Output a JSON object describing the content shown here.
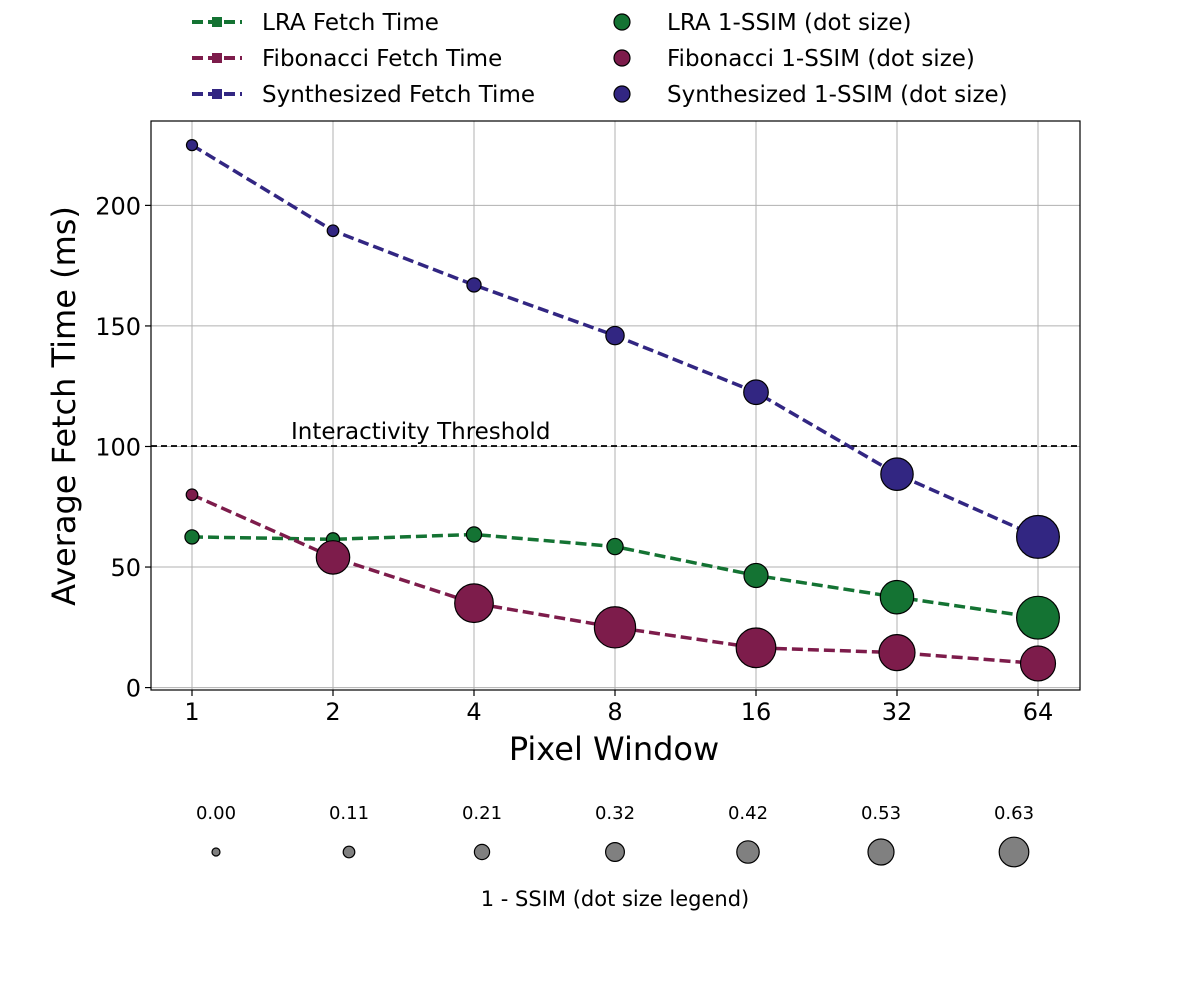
{
  "chart_data": {
    "type": "line",
    "x_categories": [
      "1",
      "2",
      "4",
      "8",
      "16",
      "32",
      "64"
    ],
    "xlabel": "Pixel Window",
    "ylabel": "Average Fetch Time (ms)",
    "yticks": [
      "0",
      "50",
      "100",
      "150",
      "200"
    ],
    "ylim": [
      -1,
      235
    ],
    "grid": true,
    "legend_position": "top",
    "series": [
      {
        "name": "LRA Fetch Time",
        "dot_name": "LRA 1-SSIM (dot size)",
        "color": "#147333",
        "values": [
          62.5,
          61.5,
          63.5,
          58.5,
          46.5,
          37.5,
          29
        ],
        "ssim": [
          0.08,
          0.06,
          0.1,
          0.12,
          0.27,
          0.45,
          0.63
        ]
      },
      {
        "name": "Fibonacci Fetch Time",
        "dot_name": "Fibonacci 1-SSIM (dot size)",
        "color": "#7d1c4b",
        "values": [
          80,
          54,
          35,
          25,
          16.5,
          14.5,
          10
        ],
        "ssim": [
          0.03,
          0.45,
          0.55,
          0.6,
          0.57,
          0.5,
          0.48
        ]
      },
      {
        "name": "Synthesized Fetch Time",
        "dot_name": "Synthesized 1-SSIM (dot size)",
        "color": "#322682",
        "values": [
          225,
          189.5,
          167,
          146,
          122.5,
          88.5,
          62.5
        ],
        "ssim": [
          0.02,
          0.03,
          0.08,
          0.16,
          0.28,
          0.43,
          0.63
        ]
      }
    ],
    "threshold": {
      "value": 100,
      "label": "Interactivity Threshold"
    },
    "size_legend": {
      "title": "1 - SSIM (dot size legend)",
      "values": [
        "0.00",
        "0.11",
        "0.21",
        "0.32",
        "0.42",
        "0.53",
        "0.63"
      ]
    }
  }
}
